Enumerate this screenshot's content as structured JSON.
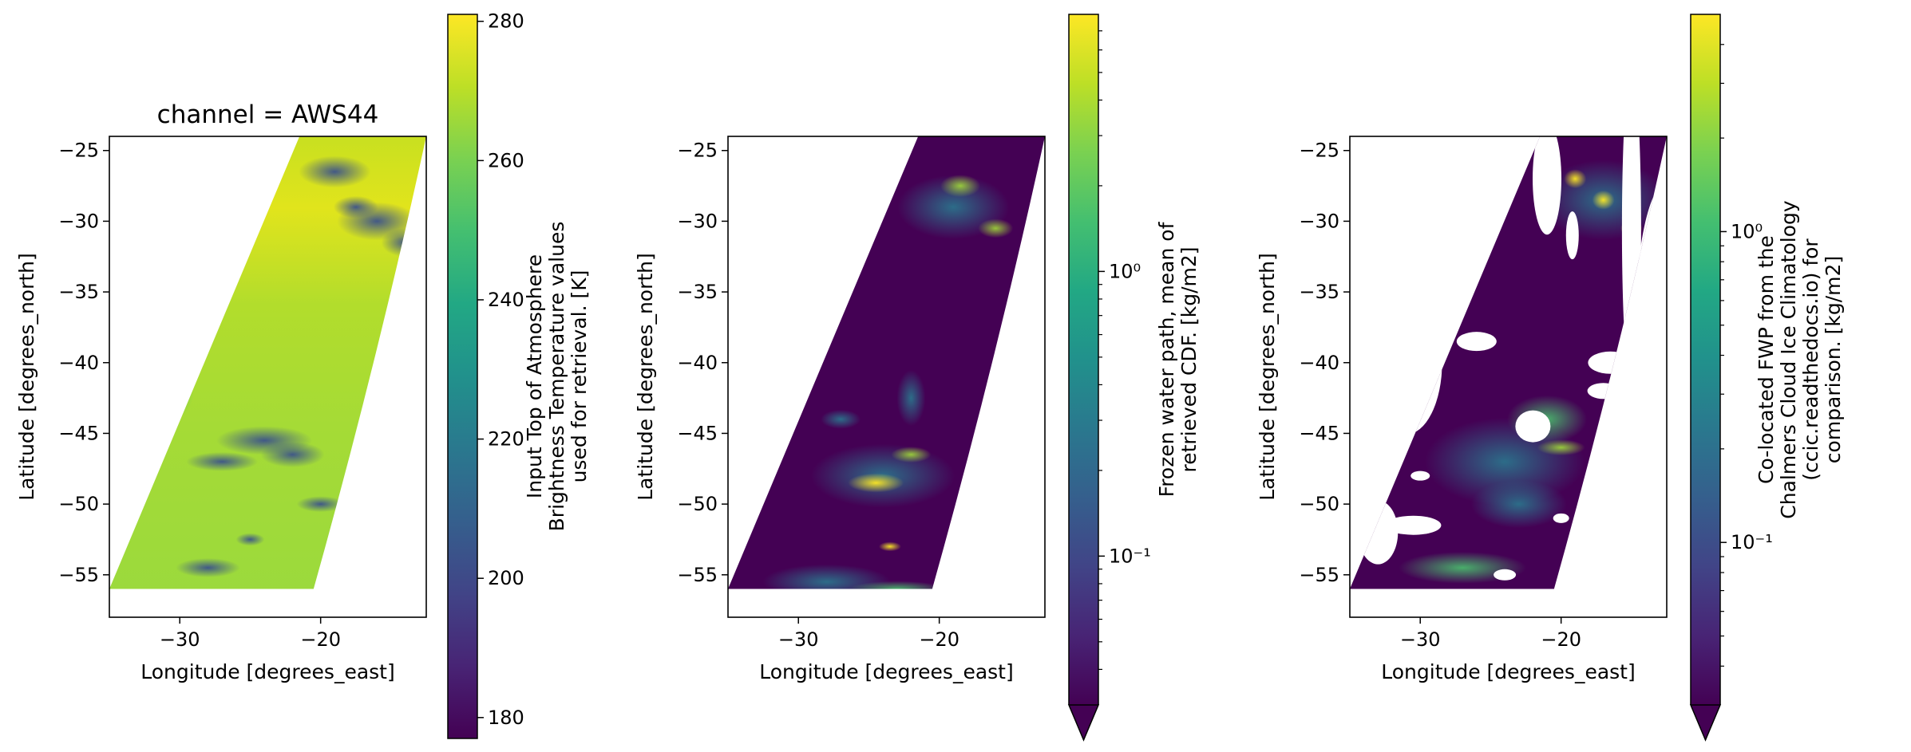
{
  "chart_data": [
    {
      "type": "heatmap",
      "title": "channel = AWS44",
      "xlabel": "Longitude [degrees_east]",
      "ylabel": "Latitude [degrees_north]",
      "xlim": [
        -35,
        -12.5
      ],
      "ylim": [
        -58,
        -24
      ],
      "x_ticks": [
        -30,
        -20
      ],
      "y_ticks": [
        -25,
        -30,
        -35,
        -40,
        -45,
        -50,
        -55
      ],
      "swath": {
        "latitudes": [
          -24,
          -56
        ],
        "west_lon": [
          -21.5,
          -35
        ],
        "east_lon": [
          -12.5,
          -20.5
        ]
      },
      "colorbar": {
        "label": [
          "Input Top of Atmosphere",
          "Brightness Temperature values",
          "used for retrieval. [K]"
        ],
        "scale": "linear",
        "range": [
          177,
          281
        ],
        "ticks": [
          180,
          200,
          220,
          240,
          260,
          280
        ],
        "colormap": "viridis",
        "extend": "neither"
      }
    },
    {
      "type": "heatmap",
      "title": "",
      "xlabel": "Longitude [degrees_east]",
      "ylabel": "Latitude [degrees_north]",
      "xlim": [
        -35,
        -12.5
      ],
      "ylim": [
        -58,
        -24
      ],
      "x_ticks": [
        -30,
        -20
      ],
      "y_ticks": [
        -25,
        -30,
        -35,
        -40,
        -45,
        -50,
        -55
      ],
      "swath": {
        "latitudes": [
          -24,
          -56
        ],
        "west_lon": [
          -21.5,
          -35
        ],
        "east_lon": [
          -12.5,
          -20.5
        ]
      },
      "colorbar": {
        "label": [
          "Frozen water path, mean of",
          "retrieved CDF. [kg/m2]"
        ],
        "scale": "log",
        "range": [
          0.03,
          8
        ],
        "ticks": [
          0.1,
          1
        ],
        "tick_labels": [
          "10⁻¹",
          "10⁰"
        ],
        "colormap": "viridis",
        "extend": "min"
      }
    },
    {
      "type": "heatmap",
      "title": "",
      "xlabel": "Longitude [degrees_east]",
      "ylabel": "Latitude [degrees_north]",
      "xlim": [
        -35,
        -12.5
      ],
      "ylim": [
        -58,
        -24
      ],
      "x_ticks": [
        -30,
        -20
      ],
      "y_ticks": [
        -25,
        -30,
        -35,
        -40,
        -45,
        -50,
        -55
      ],
      "swath": {
        "latitudes": [
          -24,
          -56
        ],
        "west_lon": [
          -21.5,
          -35
        ],
        "east_lon": [
          -12.5,
          -20.5
        ]
      },
      "colorbar": {
        "label": [
          "Co-located FWP from the",
          "Chalmers Cloud Ice Climatology",
          "(ccic.readthedocs.io) for",
          "comparison. [kg/m2]"
        ],
        "scale": "log",
        "range": [
          0.03,
          5
        ],
        "ticks": [
          0.1,
          1
        ],
        "tick_labels": [
          "10⁻¹",
          "10⁰"
        ],
        "colormap": "viridis",
        "extend": "min"
      }
    }
  ]
}
